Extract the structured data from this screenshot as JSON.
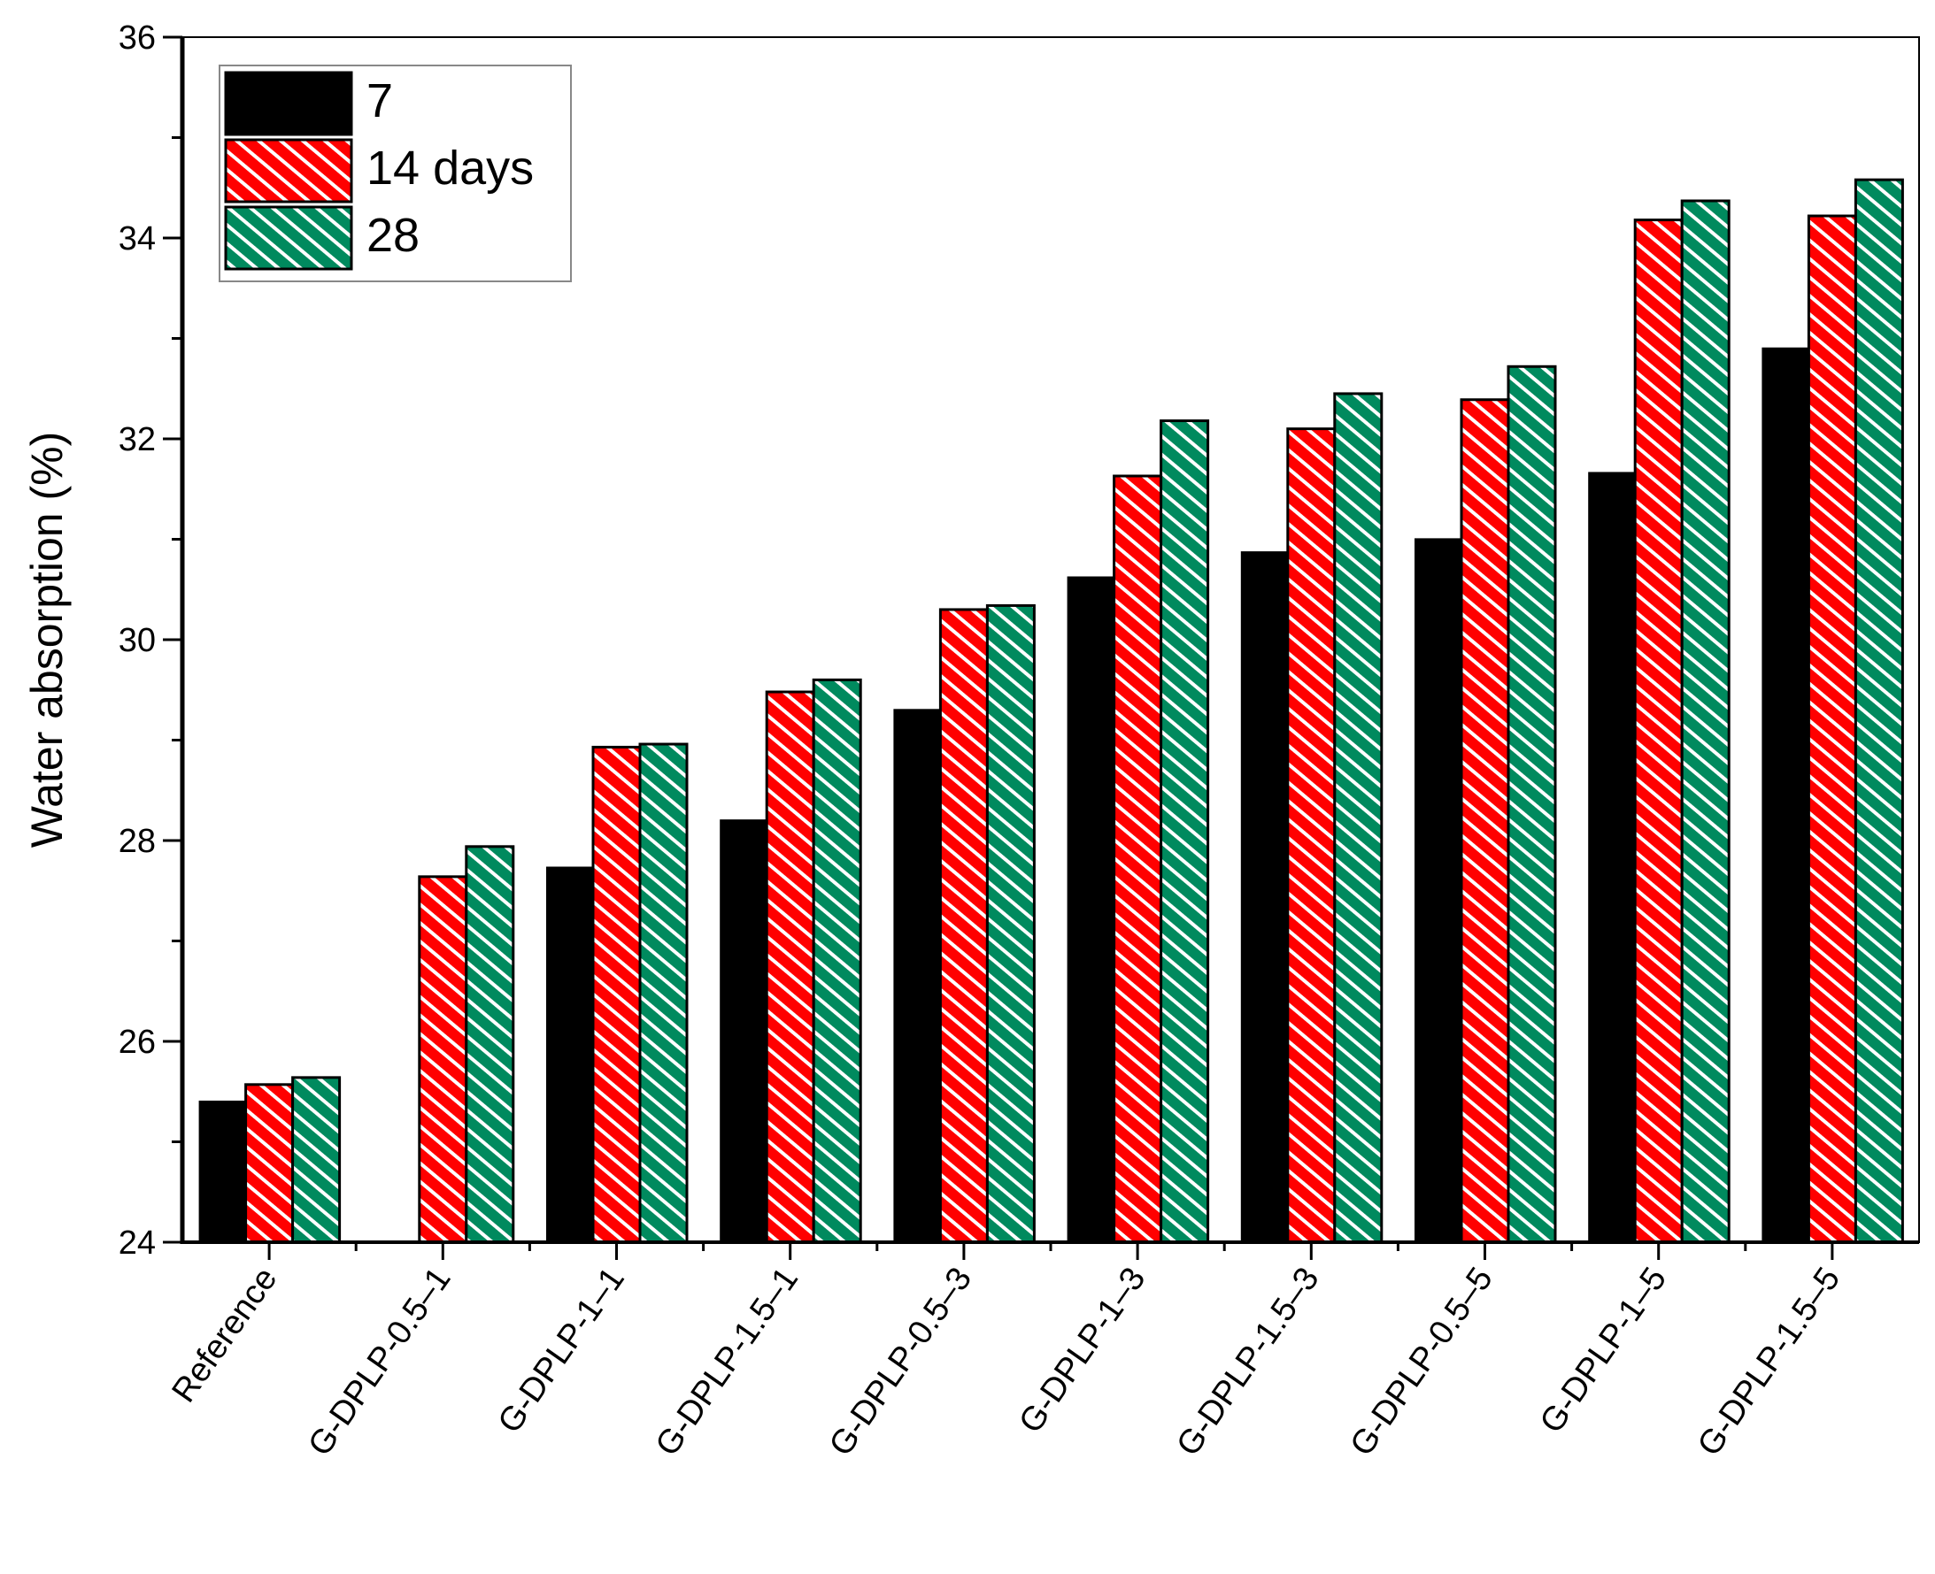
{
  "chart_data": {
    "type": "bar",
    "title": "",
    "xlabel": "",
    "ylabel": "Water absorption (%)",
    "ylim": [
      24,
      36
    ],
    "yticks": [
      24,
      26,
      28,
      30,
      32,
      34,
      36
    ],
    "grid": false,
    "legend_placement": "top-left",
    "categories": [
      "Reference",
      "G-DPLP-0.5–1",
      "G-DPLP-1–1",
      "G-DPLP-1.5–1",
      "G-DPLP-0.5–3",
      "G-DPLP-1–3",
      "G-DPLP-1.5–3",
      "G-DPLP-0.5–5",
      "G-DPLP-1–5",
      "G-DPLP-1.5–5"
    ],
    "series": [
      {
        "name": "7",
        "color": "#000000",
        "pattern": "solid",
        "values": [
          25.41,
          null,
          27.74,
          28.21,
          29.31,
          30.63,
          30.88,
          31.01,
          31.67,
          32.91
        ]
      },
      {
        "name": "14 days",
        "color": "#ff0000",
        "pattern": "white diagonal hatch",
        "values": [
          25.57,
          27.64,
          28.93,
          29.48,
          30.3,
          31.63,
          32.1,
          32.39,
          34.18,
          34.22
        ]
      },
      {
        "name": "28",
        "color": "#008a5e",
        "pattern": "white diagonal hatch",
        "values": [
          25.64,
          27.94,
          28.96,
          29.6,
          30.34,
          32.18,
          32.45,
          32.72,
          34.37,
          34.58
        ]
      }
    ]
  }
}
